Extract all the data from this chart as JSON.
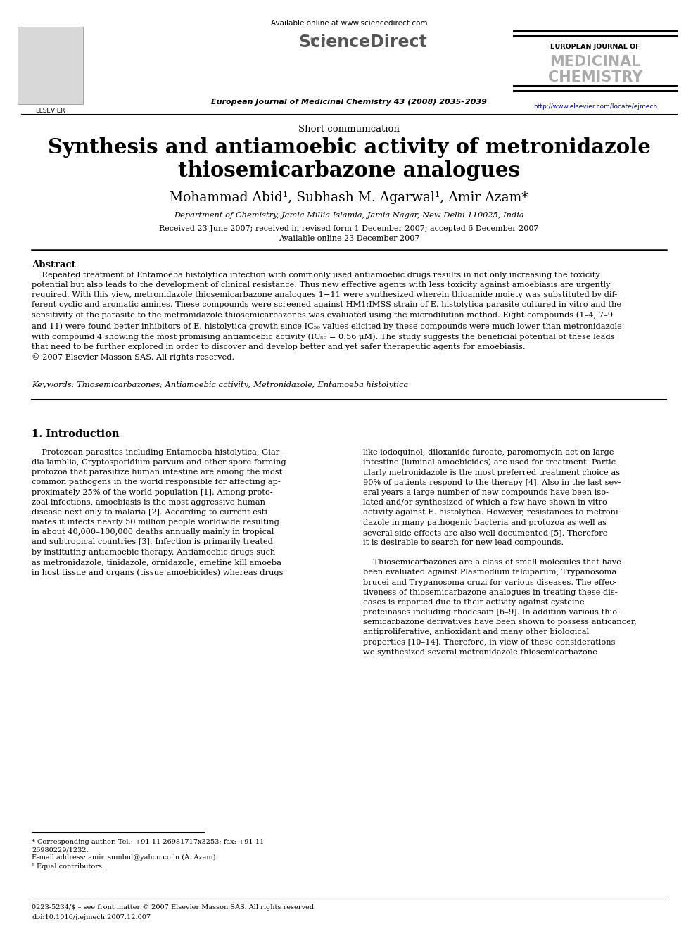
{
  "bg_color": "#ffffff",
  "available_online": "Available online at www.sciencedirect.com",
  "journal_line": "European Journal of Medicinal Chemistry 43 (2008) 2035–2039",
  "url": "http://www.elsevier.com/locate/ejmech",
  "elsevier_label": "ELSEVIER",
  "journal_title_line1": "EUROPEAN JOURNAL OF",
  "journal_title_line2": "MEDICINAL",
  "journal_title_line3": "CHEMISTRY",
  "article_type": "Short communication",
  "title_line1": "Synthesis and antiamoebic activity of metronidazole",
  "title_line2": "thiosemicarbazone analogues",
  "author_line": "Mohammad Abid¹, Subhash M. Agarwal¹, Amir Azam*",
  "affiliation": "Department of Chemistry, Jamia Millia Islamia, Jamia Nagar, New Delhi 110025, India",
  "date_line1": "Received 23 June 2007; received in revised form 1 December 2007; accepted 6 December 2007",
  "date_line2": "Available online 23 December 2007",
  "abstract_title": "Abstract",
  "abstract_body": "    Repeated treatment of Entamoeba histolytica infection with commonly used antiamoebic drugs results in not only increasing the toxicity\npotential but also leads to the development of clinical resistance. Thus new effective agents with less toxicity against amoebiasis are urgently\nrequired. With this view, metronidazole thiosemicarbazone analogues 1−11 were synthesized wherein thioamide moiety was substituted by dif-\nferent cyclic and aromatic amines. These compounds were screened against HM1:IMSS strain of E. histolytica parasite cultured in vitro and the\nsensitivity of the parasite to the metronidazole thiosemicarbazones was evaluated using the microdilution method. Eight compounds (1–4, 7–9\nand 11) were found better inhibitors of E. histolytica growth since IC₅₀ values elicited by these compounds were much lower than metronidazole\nwith compound 4 showing the most promising antiamoebic activity (IC₅₀ = 0.56 μM). The study suggests the beneficial potential of these leads\nthat need to be further explored in order to discover and develop better and yet safer therapeutic agents for amoebiasis.\n© 2007 Elsevier Masson SAS. All rights reserved.",
  "keywords": "Keywords: Thiosemicarbazones; Antiamoebic activity; Metronidazole; Entamoeba histolytica",
  "section1_title": "1. Introduction",
  "col1_text": "    Protozoan parasites including Entamoeba histolytica, Giar-\ndia lamblia, Cryptosporidium parvum and other spore forming\nprotozoa that parasitize human intestine are among the most\ncommon pathogens in the world responsible for affecting ap-\nproximately 25% of the world population [1]. Among proto-\nzoal infections, amoebiasis is the most aggressive human\ndisease next only to malaria [2]. According to current esti-\nmates it infects nearly 50 million people worldwide resulting\nin about 40,000–100,000 deaths annually mainly in tropical\nand subtropical countries [3]. Infection is primarily treated\nby instituting antiamoebic therapy. Antiamoebic drugs such\nas metronidazole, tinidazole, ornidazole, emetine kill amoeba\nin host tissue and organs (tissue amoebicides) whereas drugs",
  "col2_text": "like iodoquinol, diloxanide furoate, paromomycin act on large\nintestine (luminal amoebicides) are used for treatment. Partic-\nularly metronidazole is the most preferred treatment choice as\n90% of patients respond to the therapy [4]. Also in the last sev-\neral years a large number of new compounds have been iso-\nlated and/or synthesized of which a few have shown in vitro\nactivity against E. histolytica. However, resistances to metroni-\ndazole in many pathogenic bacteria and protozoa as well as\nseveral side effects are also well documented [5]. Therefore\nit is desirable to search for new lead compounds.\n\n    Thiosemicarbazones are a class of small molecules that have\nbeen evaluated against Plasmodium falciparum, Trypanosoma\nbrucei and Trypanosoma cruzi for various diseases. The effec-\ntiveness of thiosemicarbazone analogues in treating these dis-\neases is reported due to their activity against cysteine\nproteinases including rhodesain [6–9]. In addition various thio-\nsemicarbazone derivatives have been shown to possess anticancer,\nantiproliferative, antioxidant and many other biological\nproperties [10–14]. Therefore, in view of these considerations\nwe synthesized several metronidazole thiosemicarbazone",
  "footnote1": "* Corresponding author. Tel.: +91 11 26981717x3253; fax: +91 11\n26980229/1232.",
  "footnote2": "E-mail address: amir_sumbul@yahoo.co.in (A. Azam).",
  "footnote3": "¹ Equal contributors.",
  "bottom_line1": "0223-5234/$ – see front matter © 2007 Elsevier Masson SAS. All rights reserved.",
  "bottom_line2": "doi:10.1016/j.ejmech.2007.12.007"
}
